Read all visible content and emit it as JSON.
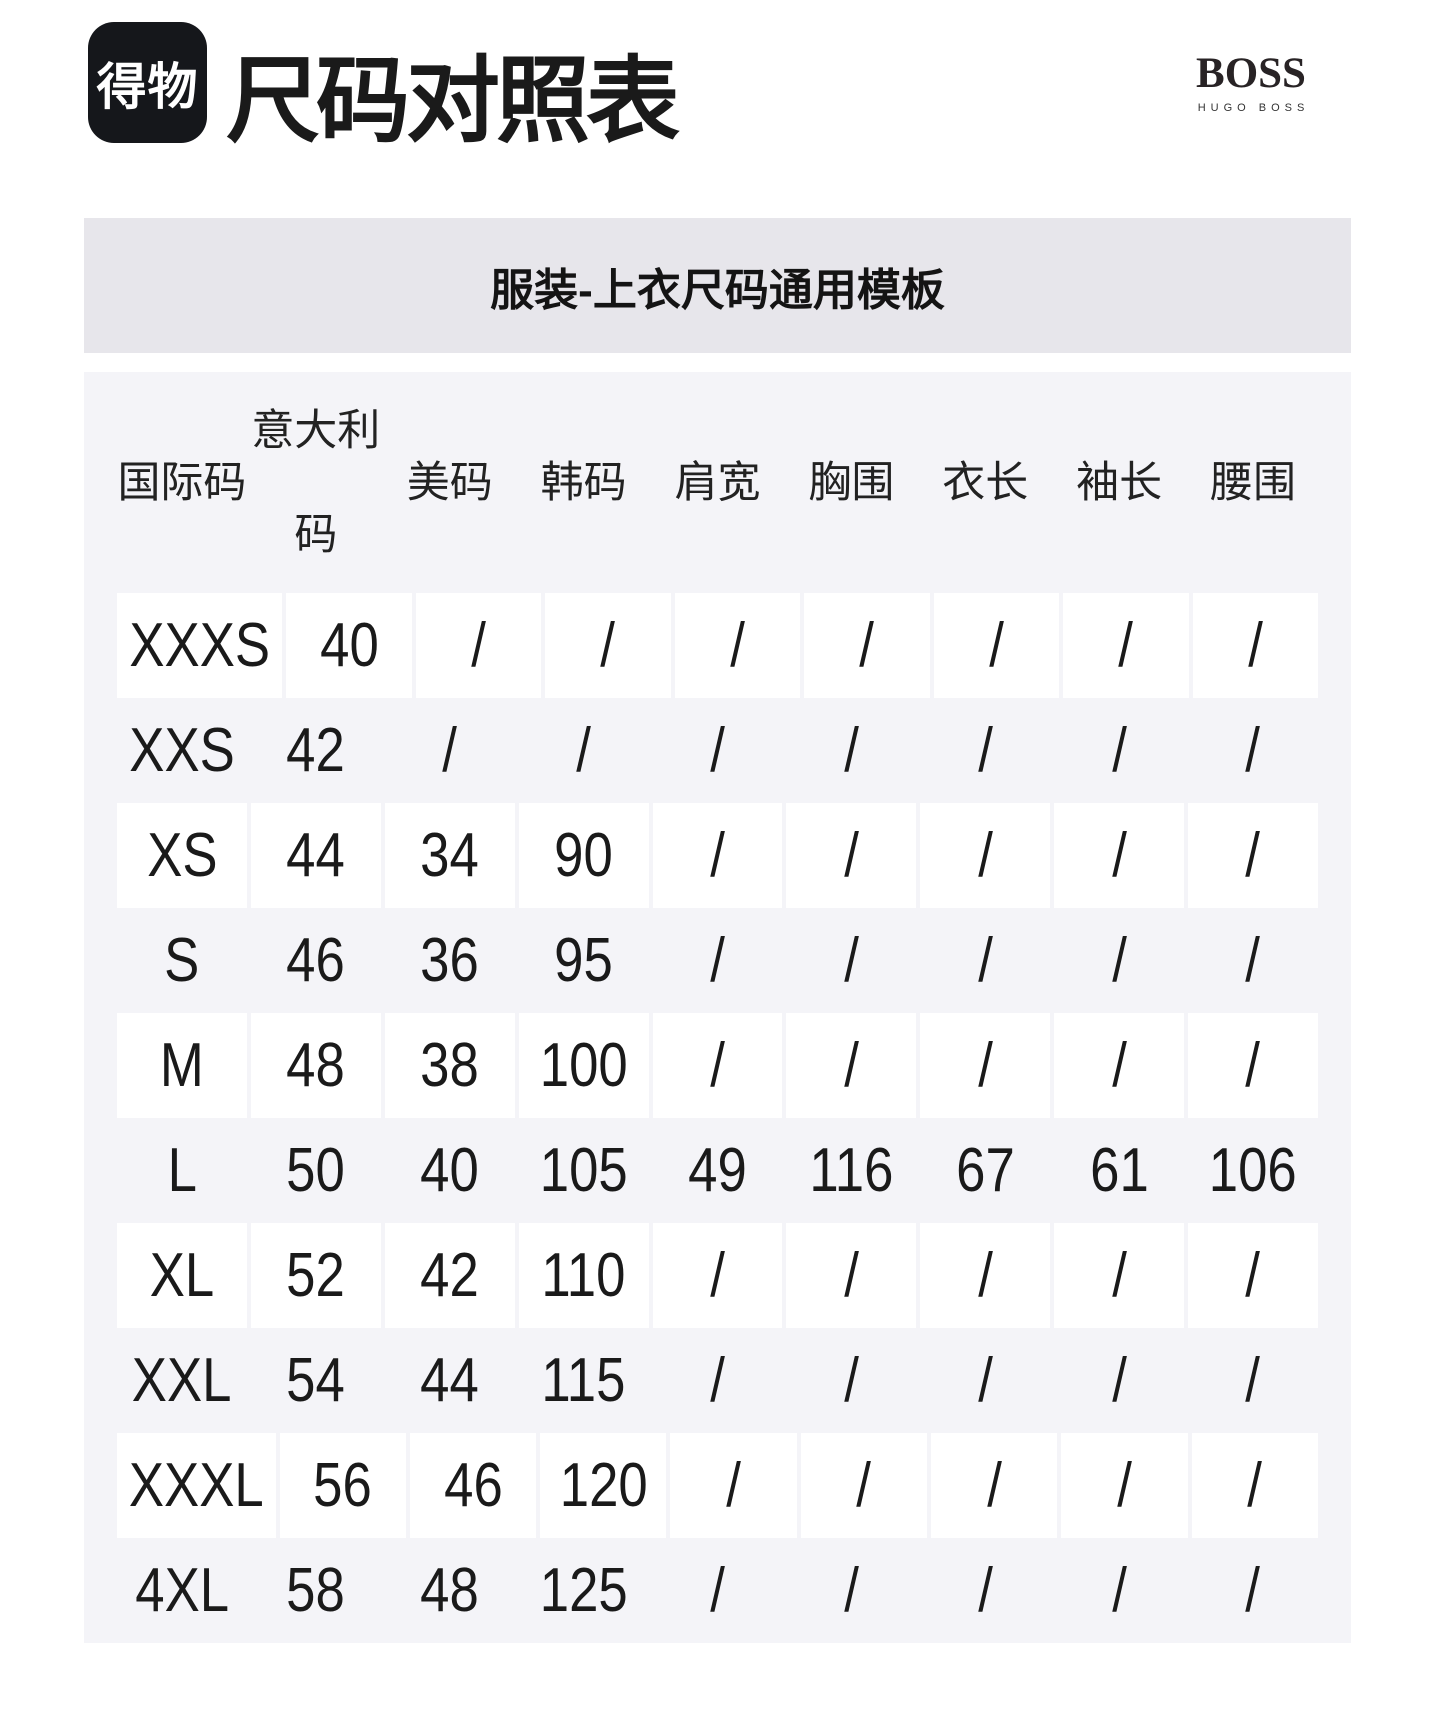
{
  "header": {
    "logo_text": "得物",
    "title": "尺码对照表",
    "brand_name": "BOSS",
    "brand_subname": "HUGO BOSS"
  },
  "subtitle": "服装-上衣尺码通用模板",
  "table": {
    "column_lines": [
      [
        "国际码"
      ],
      [
        "意大利",
        "码"
      ],
      [
        "美码"
      ],
      [
        "韩码"
      ],
      [
        "肩宽"
      ],
      [
        "胸围"
      ],
      [
        "衣长"
      ],
      [
        "袖长"
      ],
      [
        "腰围"
      ]
    ],
    "striped_row_indices": [
      0,
      2,
      4,
      6,
      8
    ]
  },
  "chart_data": {
    "type": "table",
    "title": "服装-上衣尺码通用模板",
    "columns": [
      "国际码",
      "意大利码",
      "美码",
      "韩码",
      "肩宽",
      "胸围",
      "衣长",
      "袖长",
      "腰围"
    ],
    "rows": [
      [
        "XXXS",
        "40",
        "/",
        "/",
        "/",
        "/",
        "/",
        "/",
        "/"
      ],
      [
        "XXS",
        "42",
        "/",
        "/",
        "/",
        "/",
        "/",
        "/",
        "/"
      ],
      [
        "XS",
        "44",
        "34",
        "90",
        "/",
        "/",
        "/",
        "/",
        "/"
      ],
      [
        "S",
        "46",
        "36",
        "95",
        "/",
        "/",
        "/",
        "/",
        "/"
      ],
      [
        "M",
        "48",
        "38",
        "100",
        "/",
        "/",
        "/",
        "/",
        "/"
      ],
      [
        "L",
        "50",
        "40",
        "105",
        "49",
        "116",
        "67",
        "61",
        "106"
      ],
      [
        "XL",
        "52",
        "42",
        "110",
        "/",
        "/",
        "/",
        "/",
        "/"
      ],
      [
        "XXL",
        "54",
        "44",
        "115",
        "/",
        "/",
        "/",
        "/",
        "/"
      ],
      [
        "XXXL",
        "56",
        "46",
        "120",
        "/",
        "/",
        "/",
        "/",
        "/"
      ],
      [
        "4XL",
        "58",
        "48",
        "125",
        "/",
        "/",
        "/",
        "/",
        "/"
      ]
    ]
  },
  "colors": {
    "logo_bg": "#15171b",
    "logo_text": "#ffffff",
    "subtitle_bar_bg": "#e7e6eb",
    "table_bg": "#f4f4f8",
    "cell_bg": "#ffffff",
    "text": "#1a1a1a"
  }
}
